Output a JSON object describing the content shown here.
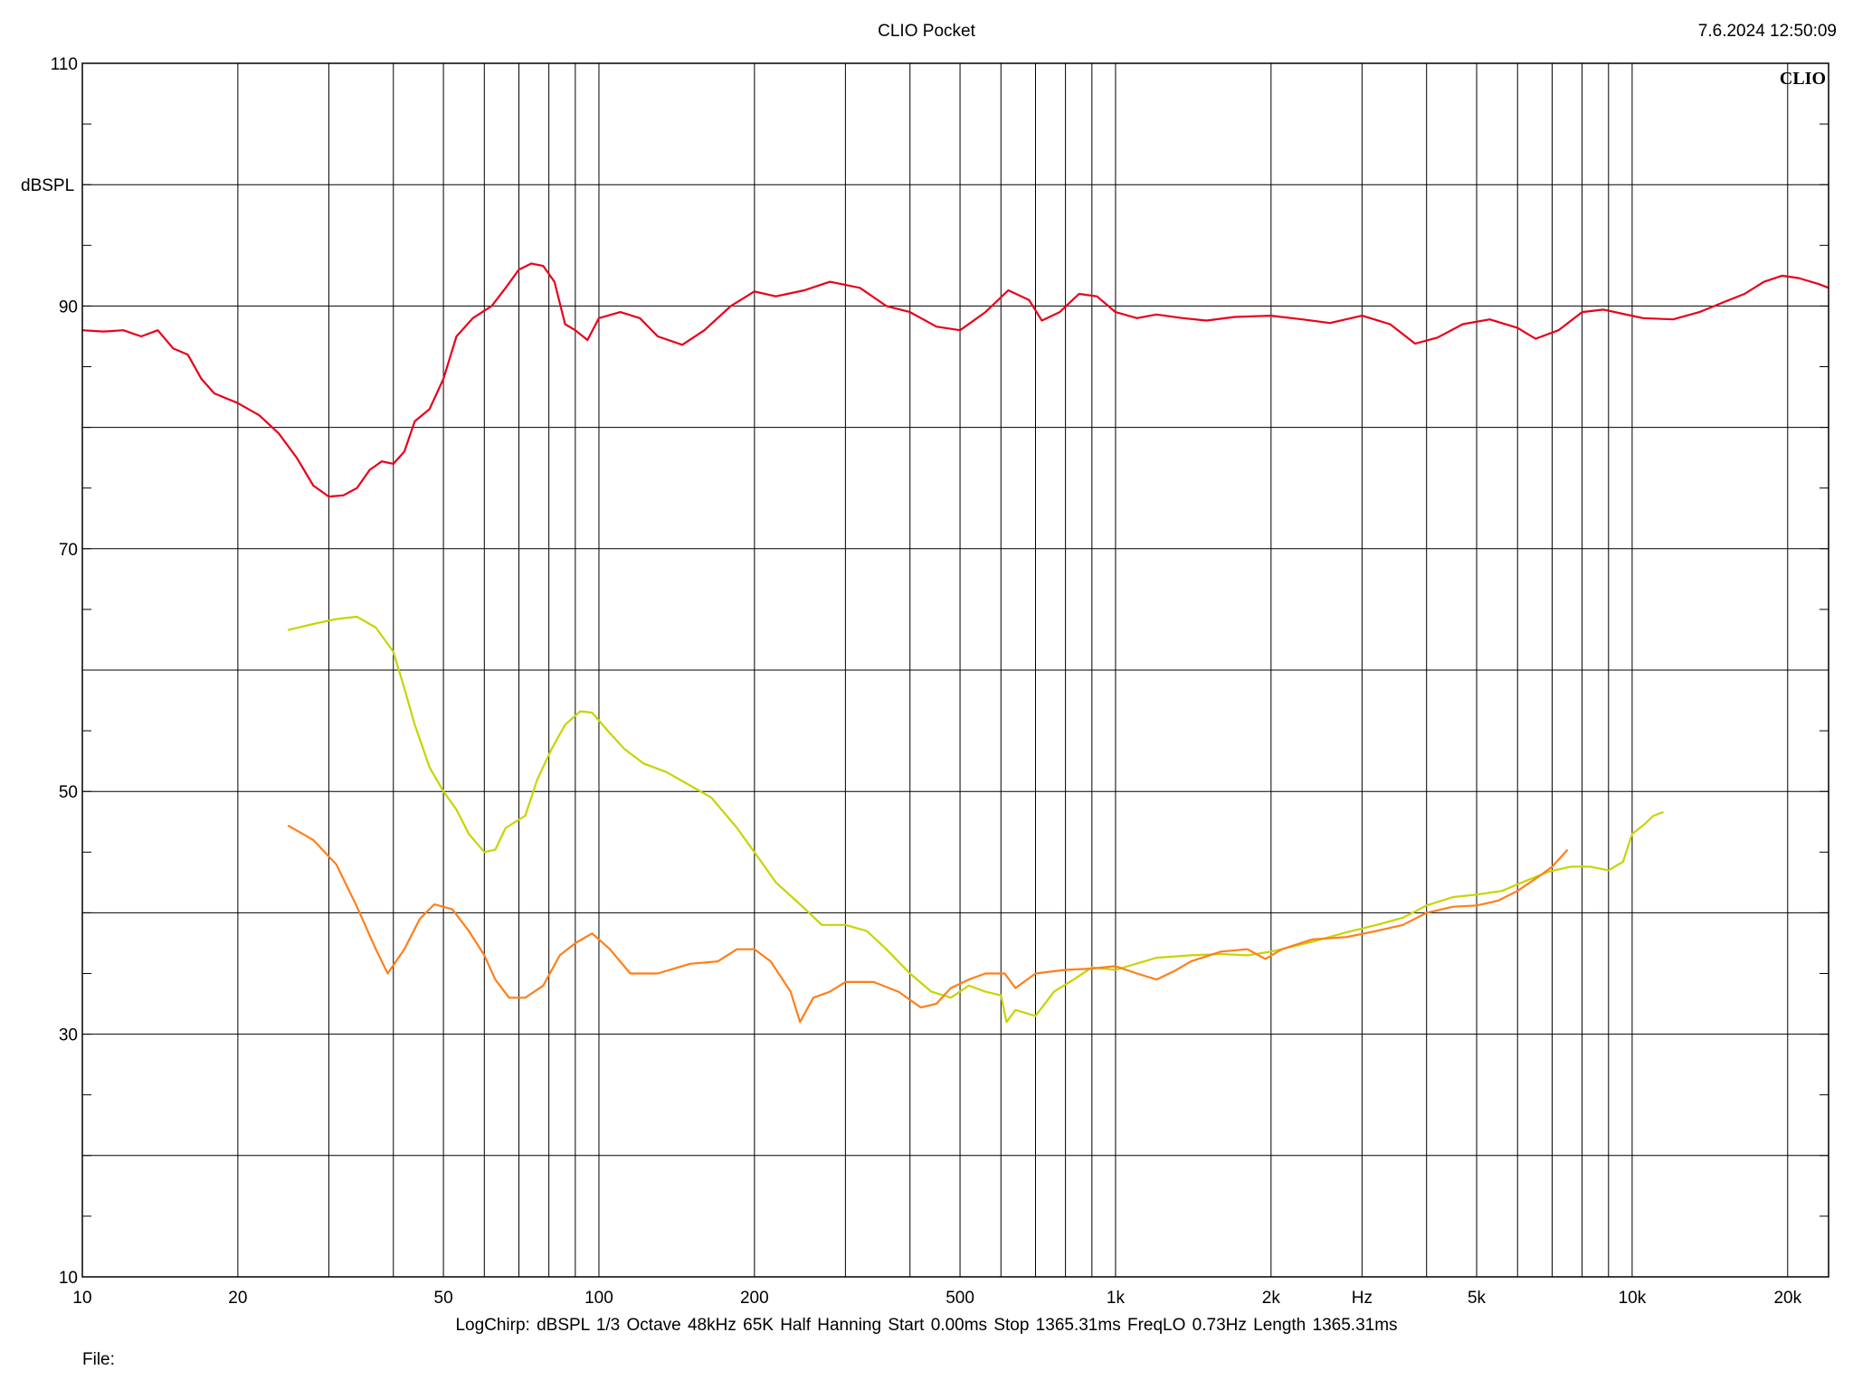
{
  "header": {
    "title": "CLIO Pocket",
    "timestamp": "7.6.2024 12:50:09"
  },
  "footer": {
    "info": "LogChirp:  dBSPL   1/3 Octave   48kHz   65K   Half Hanning   Start 0.00ms    Stop 1365.31ms    FreqLO 0.73Hz    Length 1365.31ms",
    "file_label": "File:"
  },
  "brand": "CLIO",
  "chart_data": {
    "type": "line",
    "title": "",
    "xlabel": "Hz",
    "ylabel": "dBSPL",
    "x_scale": "log",
    "xlim": [
      10,
      24000
    ],
    "ylim": [
      10,
      110
    ],
    "grid": true,
    "x_ticks": [
      {
        "value": 10,
        "label": "10"
      },
      {
        "value": 20,
        "label": "20"
      },
      {
        "value": 50,
        "label": "50"
      },
      {
        "value": 100,
        "label": "100"
      },
      {
        "value": 200,
        "label": "200"
      },
      {
        "value": 500,
        "label": "500"
      },
      {
        "value": 1000,
        "label": "1k"
      },
      {
        "value": 2000,
        "label": "2k"
      },
      {
        "value": 5000,
        "label": "5k"
      },
      {
        "value": 10000,
        "label": "10k"
      },
      {
        "value": 20000,
        "label": "20k"
      }
    ],
    "y_ticks": [
      {
        "value": 110,
        "label": "110"
      },
      {
        "value": 90,
        "label": "90"
      },
      {
        "value": 70,
        "label": "70"
      },
      {
        "value": 50,
        "label": "50"
      },
      {
        "value": 30,
        "label": "30"
      },
      {
        "value": 10,
        "label": "10"
      }
    ],
    "series": [
      {
        "color": "#e8001a",
        "points": [
          [
            10,
            88.0
          ],
          [
            11,
            87.9
          ],
          [
            12,
            88.0
          ],
          [
            13,
            87.5
          ],
          [
            14,
            88.0
          ],
          [
            15,
            86.5
          ],
          [
            16,
            86.0
          ],
          [
            17,
            84.0
          ],
          [
            18,
            82.8
          ],
          [
            20,
            82.0
          ],
          [
            22,
            81.0
          ],
          [
            24,
            79.5
          ],
          [
            26,
            77.5
          ],
          [
            28,
            75.2
          ],
          [
            30,
            74.3
          ],
          [
            32,
            74.4
          ],
          [
            34,
            75.0
          ],
          [
            36,
            76.5
          ],
          [
            38,
            77.2
          ],
          [
            40,
            77.0
          ],
          [
            42,
            78.0
          ],
          [
            44,
            80.5
          ],
          [
            47,
            81.5
          ],
          [
            50,
            84.0
          ],
          [
            53,
            87.5
          ],
          [
            57,
            89.0
          ],
          [
            62,
            90.0
          ],
          [
            66,
            91.5
          ],
          [
            70,
            93.0
          ],
          [
            74,
            93.5
          ],
          [
            78,
            93.3
          ],
          [
            82,
            92.0
          ],
          [
            86,
            88.5
          ],
          [
            90,
            88.0
          ],
          [
            95,
            87.2
          ],
          [
            100,
            89.0
          ],
          [
            110,
            89.5
          ],
          [
            120,
            89.0
          ],
          [
            130,
            87.5
          ],
          [
            145,
            86.8
          ],
          [
            160,
            88.0
          ],
          [
            180,
            90.0
          ],
          [
            200,
            91.2
          ],
          [
            220,
            90.8
          ],
          [
            250,
            91.3
          ],
          [
            280,
            92.0
          ],
          [
            320,
            91.5
          ],
          [
            360,
            90.0
          ],
          [
            400,
            89.5
          ],
          [
            450,
            88.3
          ],
          [
            500,
            88.0
          ],
          [
            560,
            89.5
          ],
          [
            620,
            91.3
          ],
          [
            680,
            90.5
          ],
          [
            720,
            88.8
          ],
          [
            780,
            89.5
          ],
          [
            850,
            91.0
          ],
          [
            920,
            90.8
          ],
          [
            1000,
            89.5
          ],
          [
            1100,
            89.0
          ],
          [
            1200,
            89.3
          ],
          [
            1350,
            89.0
          ],
          [
            1500,
            88.8
          ],
          [
            1700,
            89.1
          ],
          [
            2000,
            89.2
          ],
          [
            2300,
            88.9
          ],
          [
            2600,
            88.6
          ],
          [
            3000,
            89.2
          ],
          [
            3400,
            88.5
          ],
          [
            3800,
            86.9
          ],
          [
            4200,
            87.4
          ],
          [
            4700,
            88.5
          ],
          [
            5300,
            88.9
          ],
          [
            6000,
            88.2
          ],
          [
            6500,
            87.3
          ],
          [
            7200,
            88.0
          ],
          [
            8000,
            89.5
          ],
          [
            8800,
            89.7
          ],
          [
            9500,
            89.4
          ],
          [
            10500,
            89.0
          ],
          [
            12000,
            88.9
          ],
          [
            13500,
            89.5
          ],
          [
            15000,
            90.3
          ],
          [
            16500,
            91.0
          ],
          [
            18000,
            92.0
          ],
          [
            19500,
            92.5
          ],
          [
            21000,
            92.3
          ],
          [
            23000,
            91.8
          ],
          [
            24000,
            91.5
          ]
        ]
      },
      {
        "color": "#c8d400",
        "points": [
          [
            25,
            63.3
          ],
          [
            28,
            63.8
          ],
          [
            31,
            64.2
          ],
          [
            34,
            64.4
          ],
          [
            37,
            63.5
          ],
          [
            40,
            61.5
          ],
          [
            42,
            58.5
          ],
          [
            44,
            55.5
          ],
          [
            47,
            52.0
          ],
          [
            50,
            50.0
          ],
          [
            53,
            48.5
          ],
          [
            56,
            46.5
          ],
          [
            60,
            45.0
          ],
          [
            63,
            45.2
          ],
          [
            66,
            47.0
          ],
          [
            72,
            48.0
          ],
          [
            76,
            51.0
          ],
          [
            81,
            53.5
          ],
          [
            86,
            55.5
          ],
          [
            92,
            56.6
          ],
          [
            97,
            56.5
          ],
          [
            104,
            55.0
          ],
          [
            112,
            53.5
          ],
          [
            122,
            52.3
          ],
          [
            135,
            51.6
          ],
          [
            150,
            50.5
          ],
          [
            165,
            49.5
          ],
          [
            185,
            47.0
          ],
          [
            200,
            45.0
          ],
          [
            220,
            42.5
          ],
          [
            245,
            40.7
          ],
          [
            270,
            39.0
          ],
          [
            300,
            39.0
          ],
          [
            330,
            38.5
          ],
          [
            360,
            37.0
          ],
          [
            400,
            35.0
          ],
          [
            440,
            33.5
          ],
          [
            480,
            33.0
          ],
          [
            520,
            34.0
          ],
          [
            560,
            33.5
          ],
          [
            600,
            33.2
          ],
          [
            615,
            31.0
          ],
          [
            640,
            32.0
          ],
          [
            700,
            31.5
          ],
          [
            760,
            33.5
          ],
          [
            830,
            34.5
          ],
          [
            900,
            35.5
          ],
          [
            1000,
            35.3
          ],
          [
            1200,
            36.3
          ],
          [
            1400,
            36.5
          ],
          [
            1600,
            36.6
          ],
          [
            1800,
            36.5
          ],
          [
            2000,
            36.8
          ],
          [
            2400,
            37.6
          ],
          [
            2800,
            38.4
          ],
          [
            3200,
            39.0
          ],
          [
            3600,
            39.6
          ],
          [
            4000,
            40.6
          ],
          [
            4500,
            41.3
          ],
          [
            5000,
            41.5
          ],
          [
            5600,
            41.8
          ],
          [
            6200,
            42.6
          ],
          [
            6900,
            43.4
          ],
          [
            7600,
            43.8
          ],
          [
            8300,
            43.8
          ],
          [
            9000,
            43.5
          ],
          [
            9600,
            44.2
          ],
          [
            10000,
            46.5
          ],
          [
            10500,
            47.2
          ],
          [
            11000,
            48.0
          ],
          [
            11500,
            48.3
          ]
        ]
      },
      {
        "color": "#ff7f1a",
        "points": [
          [
            25,
            47.2
          ],
          [
            28,
            46.0
          ],
          [
            31,
            44.0
          ],
          [
            34,
            40.5
          ],
          [
            37,
            37.0
          ],
          [
            39,
            35.0
          ],
          [
            42,
            37.0
          ],
          [
            45,
            39.5
          ],
          [
            48,
            40.7
          ],
          [
            52,
            40.3
          ],
          [
            56,
            38.5
          ],
          [
            60,
            36.5
          ],
          [
            63,
            34.5
          ],
          [
            67,
            33.0
          ],
          [
            72,
            33.0
          ],
          [
            78,
            34.0
          ],
          [
            84,
            36.5
          ],
          [
            90,
            37.5
          ],
          [
            97,
            38.3
          ],
          [
            105,
            37.0
          ],
          [
            115,
            35.0
          ],
          [
            130,
            35.0
          ],
          [
            150,
            35.8
          ],
          [
            170,
            36.0
          ],
          [
            185,
            37.0
          ],
          [
            200,
            37.0
          ],
          [
            215,
            36.0
          ],
          [
            235,
            33.5
          ],
          [
            245,
            31.0
          ],
          [
            260,
            33.0
          ],
          [
            280,
            33.5
          ],
          [
            300,
            34.3
          ],
          [
            340,
            34.3
          ],
          [
            380,
            33.5
          ],
          [
            420,
            32.2
          ],
          [
            450,
            32.5
          ],
          [
            480,
            33.8
          ],
          [
            520,
            34.5
          ],
          [
            560,
            35.0
          ],
          [
            610,
            35.0
          ],
          [
            640,
            33.8
          ],
          [
            700,
            35.0
          ],
          [
            800,
            35.3
          ],
          [
            900,
            35.4
          ],
          [
            1000,
            35.6
          ],
          [
            1100,
            35.0
          ],
          [
            1200,
            34.5
          ],
          [
            1300,
            35.2
          ],
          [
            1400,
            36.0
          ],
          [
            1600,
            36.8
          ],
          [
            1800,
            37.0
          ],
          [
            1950,
            36.2
          ],
          [
            2100,
            37.0
          ],
          [
            2400,
            37.8
          ],
          [
            2800,
            38.0
          ],
          [
            3200,
            38.5
          ],
          [
            3600,
            39.0
          ],
          [
            4000,
            40.0
          ],
          [
            4500,
            40.5
          ],
          [
            5000,
            40.6
          ],
          [
            5500,
            41.0
          ],
          [
            6000,
            41.8
          ],
          [
            6600,
            43.0
          ],
          [
            7000,
            43.8
          ],
          [
            7500,
            45.2
          ]
        ]
      }
    ]
  }
}
